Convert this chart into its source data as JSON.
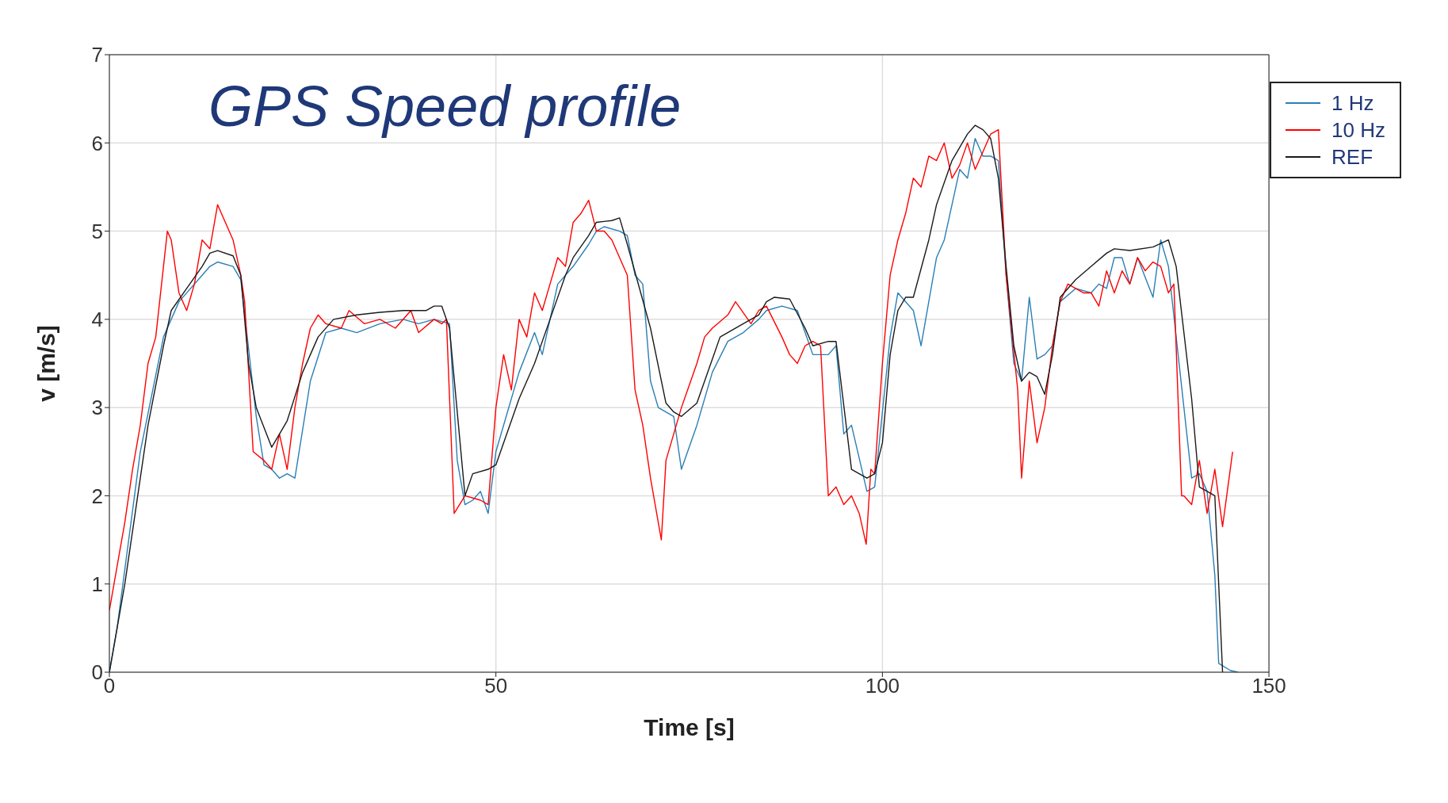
{
  "chart_data": {
    "type": "line",
    "title": "GPS Speed profile",
    "xlabel": "Time [s]",
    "ylabel": "v [m/s]",
    "xlim": [
      0,
      150
    ],
    "xticks": [
      0,
      50,
      100,
      150
    ],
    "ylim": [
      0,
      7
    ],
    "yticks": [
      0,
      1,
      2,
      3,
      4,
      5,
      6,
      7
    ],
    "grid": true,
    "legend": "top right",
    "marker": "none",
    "line_style": "solid",
    "series": [
      {
        "name": "1 Hz",
        "color": "#2a7fb5",
        "x": [
          0,
          1,
          4,
          7,
          9,
          12,
          13,
          14,
          16,
          17,
          19,
          20,
          21,
          22,
          23,
          24,
          26,
          28,
          30,
          32,
          35,
          38,
          40,
          42,
          44,
          45,
          46,
          47,
          48,
          49,
          50,
          53,
          55,
          56,
          58,
          60,
          62,
          63,
          64,
          66,
          67,
          68,
          69,
          70,
          71,
          73,
          74,
          76,
          78,
          80,
          82,
          84,
          85,
          87,
          89,
          91,
          93,
          94,
          95,
          96,
          98,
          99,
          101,
          102,
          104,
          105,
          107,
          108,
          110,
          111,
          112,
          113,
          114,
          115,
          116,
          117,
          118,
          119,
          120,
          121,
          122,
          123,
          125,
          127,
          128,
          129,
          130,
          131,
          132,
          133,
          135,
          136,
          137,
          139,
          140,
          141,
          142,
          143,
          143.5,
          145,
          146
        ],
        "values": [
          0,
          0.5,
          2.5,
          3.8,
          4.2,
          4.5,
          4.6,
          4.65,
          4.6,
          4.45,
          2.9,
          2.35,
          2.3,
          2.2,
          2.25,
          2.2,
          3.3,
          3.85,
          3.9,
          3.85,
          3.95,
          4.0,
          3.95,
          4.0,
          3.95,
          2.4,
          1.9,
          1.95,
          2.05,
          1.8,
          2.5,
          3.4,
          3.85,
          3.6,
          4.4,
          4.6,
          4.85,
          5.0,
          5.05,
          5.0,
          4.95,
          4.5,
          4.4,
          3.3,
          3.0,
          2.9,
          2.3,
          2.8,
          3.4,
          3.75,
          3.85,
          4.0,
          4.1,
          4.15,
          4.1,
          3.6,
          3.6,
          3.7,
          2.7,
          2.8,
          2.05,
          2.1,
          3.8,
          4.3,
          4.1,
          3.7,
          4.7,
          4.9,
          5.7,
          5.6,
          6.05,
          5.85,
          5.85,
          5.8,
          4.5,
          3.5,
          3.3,
          4.25,
          3.55,
          3.6,
          3.7,
          4.2,
          4.35,
          4.3,
          4.4,
          4.35,
          4.7,
          4.7,
          4.4,
          4.7,
          4.25,
          4.9,
          4.6,
          3.0,
          2.2,
          2.25,
          2.05,
          1.1,
          0.1,
          0.02,
          0
        ]
      },
      {
        "name": "10 Hz",
        "color": "#ff0000",
        "x": [
          0,
          1,
          2,
          3,
          4,
          5,
          6,
          7,
          7.5,
          8,
          9,
          10,
          11,
          12,
          13,
          14,
          15,
          16,
          17,
          17.5,
          18.6,
          20,
          21,
          22,
          23,
          24,
          25,
          26,
          27,
          28,
          30,
          31,
          33,
          35,
          37,
          39,
          40,
          42,
          43,
          43.6,
          44.6,
          46,
          48,
          49,
          50,
          51,
          52,
          53,
          54,
          55,
          56,
          57,
          58,
          59,
          60,
          61,
          62,
          63,
          64,
          65,
          66,
          67,
          68,
          69,
          70,
          71.4,
          72,
          74,
          76,
          77,
          78,
          80,
          81,
          83,
          84,
          85,
          87,
          88,
          89,
          90,
          91,
          92,
          93,
          94,
          95,
          96,
          97,
          97.9,
          98.5,
          99,
          100,
          101,
          102,
          103,
          104,
          105,
          106,
          107,
          108,
          109,
          110,
          111,
          112,
          113,
          114,
          115,
          116,
          117.5,
          118,
          119,
          120,
          121,
          122,
          123,
          124,
          126,
          127,
          128,
          129,
          130,
          131,
          132,
          133,
          134,
          135,
          136,
          137,
          137.7,
          138.7,
          139,
          140,
          141,
          142,
          143,
          144,
          145.3
        ],
        "values": [
          0.7,
          1.2,
          1.7,
          2.3,
          2.8,
          3.5,
          3.8,
          4.6,
          5.0,
          4.9,
          4.3,
          4.1,
          4.4,
          4.9,
          4.8,
          5.3,
          5.1,
          4.9,
          4.5,
          4.2,
          2.5,
          2.4,
          2.3,
          2.7,
          2.3,
          3.0,
          3.5,
          3.9,
          4.05,
          3.95,
          3.9,
          4.1,
          3.95,
          4.0,
          3.9,
          4.1,
          3.85,
          4.0,
          3.95,
          4.0,
          1.8,
          2.0,
          1.95,
          1.9,
          3.0,
          3.6,
          3.2,
          4.0,
          3.8,
          4.3,
          4.1,
          4.4,
          4.7,
          4.6,
          5.1,
          5.2,
          5.35,
          5.0,
          5.0,
          4.9,
          4.7,
          4.5,
          3.2,
          2.8,
          2.2,
          1.5,
          2.4,
          3.0,
          3.5,
          3.8,
          3.9,
          4.05,
          4.2,
          3.95,
          4.1,
          4.15,
          3.8,
          3.6,
          3.5,
          3.7,
          3.75,
          3.7,
          2.0,
          2.1,
          1.9,
          2.0,
          1.8,
          1.45,
          2.3,
          2.25,
          3.5,
          4.5,
          4.9,
          5.2,
          5.6,
          5.5,
          5.85,
          5.8,
          6.0,
          5.6,
          5.75,
          6.0,
          5.7,
          5.9,
          6.1,
          6.15,
          4.5,
          3.2,
          2.2,
          3.3,
          2.6,
          3.0,
          3.7,
          4.2,
          4.4,
          4.3,
          4.3,
          4.15,
          4.55,
          4.3,
          4.55,
          4.4,
          4.7,
          4.55,
          4.65,
          4.6,
          4.3,
          4.4,
          2.0,
          2.0,
          1.9,
          2.4,
          1.8,
          2.3,
          1.65,
          2.5
        ]
      },
      {
        "name": "REF",
        "color": "#1a1a1a",
        "x": [
          0,
          2,
          5,
          7,
          8,
          10,
          12,
          13,
          14,
          16,
          17,
          18,
          19,
          21,
          22,
          23,
          25,
          27,
          29,
          32,
          35,
          38,
          41,
          42,
          43,
          44,
          46,
          47,
          49,
          50,
          53,
          55,
          57,
          59,
          60,
          62,
          63,
          65,
          66,
          67,
          70,
          72,
          73,
          74,
          76,
          78,
          79,
          82,
          84,
          85,
          86,
          88,
          90,
          91,
          93,
          94,
          96,
          98,
          99,
          100,
          101,
          102,
          103,
          104,
          106,
          107,
          109,
          111,
          112,
          113,
          114,
          115,
          116,
          117,
          118,
          119,
          120,
          121,
          122,
          123,
          125,
          127,
          129,
          130,
          132,
          135,
          137,
          138,
          140,
          141,
          142,
          143,
          144
        ],
        "values": [
          0,
          1.0,
          2.8,
          3.7,
          4.1,
          4.35,
          4.6,
          4.75,
          4.78,
          4.72,
          4.5,
          3.5,
          3.0,
          2.55,
          2.7,
          2.85,
          3.4,
          3.8,
          4.0,
          4.05,
          4.08,
          4.1,
          4.1,
          4.15,
          4.15,
          3.9,
          2.0,
          2.25,
          2.3,
          2.35,
          3.1,
          3.5,
          4.0,
          4.5,
          4.7,
          4.95,
          5.1,
          5.12,
          5.15,
          4.85,
          3.9,
          3.05,
          2.95,
          2.9,
          3.05,
          3.55,
          3.8,
          3.95,
          4.05,
          4.2,
          4.25,
          4.23,
          3.9,
          3.7,
          3.75,
          3.75,
          2.3,
          2.2,
          2.25,
          2.6,
          3.6,
          4.1,
          4.25,
          4.25,
          4.9,
          5.3,
          5.8,
          6.1,
          6.2,
          6.15,
          6.05,
          5.6,
          4.6,
          3.7,
          3.3,
          3.4,
          3.35,
          3.15,
          3.6,
          4.25,
          4.45,
          4.6,
          4.75,
          4.8,
          4.78,
          4.82,
          4.9,
          4.6,
          3.1,
          2.1,
          2.05,
          2.0,
          0
        ]
      }
    ]
  }
}
